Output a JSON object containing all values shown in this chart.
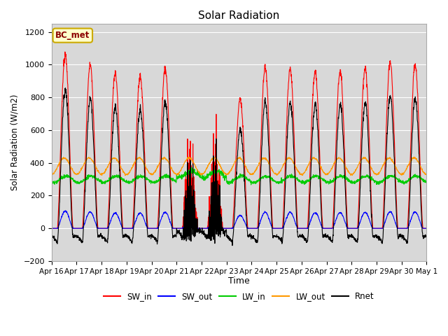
{
  "title": "Solar Radiation",
  "ylabel": "Solar Radiation (W/m2)",
  "xlabel": "Time",
  "ylim": [
    -200,
    1250
  ],
  "annotation": "BC_met",
  "legend_entries": [
    "SW_in",
    "SW_out",
    "LW_in",
    "LW_out",
    "Rnet"
  ],
  "line_colors": [
    "#ff0000",
    "#0000ff",
    "#00cc00",
    "#ff9900",
    "#000000"
  ],
  "bg_color": "#d8d8d8",
  "xtick_labels": [
    "Apr 16",
    "Apr 17",
    "Apr 18",
    "Apr 19",
    "Apr 20",
    "Apr 21",
    "Apr 22",
    "Apr 23",
    "Apr 24",
    "Apr 25",
    "Apr 26",
    "Apr 27",
    "Apr 28",
    "Apr 29",
    "Apr 30",
    "May 1"
  ],
  "ytick_values": [
    -200,
    0,
    200,
    400,
    600,
    800,
    1000,
    1200
  ],
  "n_days": 15
}
